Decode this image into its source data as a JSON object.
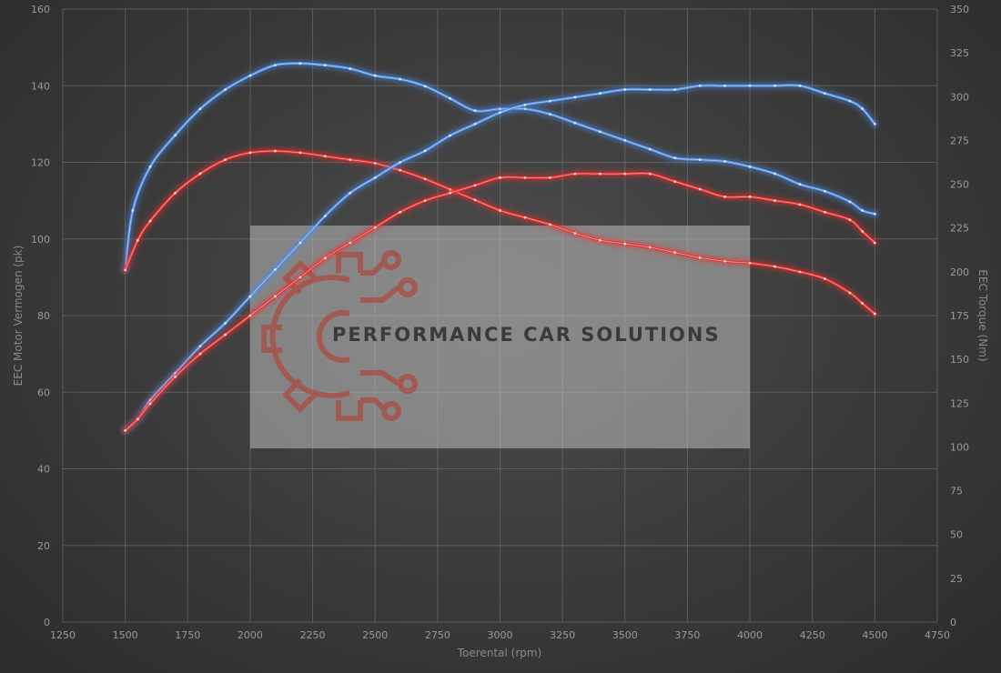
{
  "chart_data": {
    "type": "line",
    "xlabel": "Toerental (rpm)",
    "ylabel_left": "EEC Motor Vermogen (pk)",
    "ylabel_right": "EEC Torque (Nm)",
    "xlim": [
      1250,
      4750
    ],
    "ylim_left": [
      0,
      160
    ],
    "ylim_right": [
      0,
      350
    ],
    "x_ticks": [
      1250,
      1500,
      1750,
      2000,
      2250,
      2500,
      2750,
      3000,
      3250,
      3500,
      3750,
      4000,
      4250,
      4500,
      4750
    ],
    "y_ticks_left": [
      0,
      20,
      40,
      60,
      80,
      100,
      120,
      140,
      160
    ],
    "y_ticks_right": [
      0,
      25,
      50,
      75,
      100,
      125,
      150,
      175,
      200,
      225,
      250,
      275,
      300,
      325,
      350
    ],
    "grid": true,
    "colors": {
      "tuned": "#4f8fe6",
      "stock": "#e8302f"
    },
    "series": [
      {
        "key": "tuned_torque",
        "axis": "right",
        "color": "tuned",
        "x": [
          1500,
          1530,
          1600,
          1700,
          1800,
          1900,
          2000,
          2100,
          2200,
          2300,
          2400,
          2500,
          2600,
          2700,
          2800,
          2900,
          3000,
          3100,
          3200,
          3300,
          3400,
          3500,
          3600,
          3700,
          3800,
          3900,
          4000,
          4100,
          4200,
          4300,
          4400,
          4450,
          4500
        ],
        "values": [
          201,
          235,
          260,
          278,
          293,
          304,
          312,
          318,
          319,
          318,
          316,
          312,
          310,
          306,
          299,
          292,
          293,
          293,
          290,
          285,
          280,
          275,
          270,
          265,
          264,
          263,
          260,
          256,
          250,
          246,
          240,
          235,
          233
        ]
      },
      {
        "key": "stock_torque",
        "axis": "right",
        "color": "stock",
        "x": [
          1500,
          1550,
          1600,
          1700,
          1800,
          1900,
          2000,
          2100,
          2200,
          2300,
          2400,
          2500,
          2600,
          2700,
          2800,
          2900,
          3000,
          3100,
          3200,
          3300,
          3400,
          3500,
          3600,
          3700,
          3800,
          3900,
          4000,
          4100,
          4200,
          4300,
          4400,
          4450,
          4500
        ],
        "values": [
          201,
          218,
          229,
          245,
          256,
          264,
          268,
          269,
          268,
          266,
          264,
          262,
          258,
          253,
          247,
          241,
          235,
          231,
          227,
          222,
          218,
          216,
          214,
          211,
          208,
          206,
          205,
          203,
          200,
          196,
          188,
          182,
          176
        ]
      },
      {
        "key": "tuned_power",
        "axis": "left",
        "color": "tuned",
        "x": [
          1500,
          1550,
          1600,
          1700,
          1800,
          1900,
          2000,
          2100,
          2200,
          2300,
          2400,
          2500,
          2600,
          2700,
          2800,
          2900,
          3000,
          3100,
          3200,
          3300,
          3400,
          3500,
          3600,
          3700,
          3800,
          3900,
          4000,
          4100,
          4200,
          4300,
          4400,
          4450,
          4500
        ],
        "values": [
          50,
          53,
          58,
          65,
          72,
          78,
          85,
          92,
          99,
          106,
          112,
          116,
          120,
          123,
          127,
          130,
          133,
          135,
          136,
          137,
          138,
          139,
          139,
          139,
          140,
          140,
          140,
          140,
          140,
          138,
          136,
          134,
          130
        ]
      },
      {
        "key": "stock_power",
        "axis": "left",
        "color": "stock",
        "x": [
          1500,
          1550,
          1600,
          1700,
          1800,
          1900,
          2000,
          2100,
          2200,
          2300,
          2400,
          2500,
          2600,
          2700,
          2800,
          2900,
          3000,
          3100,
          3200,
          3300,
          3400,
          3500,
          3600,
          3700,
          3800,
          3900,
          4000,
          4100,
          4200,
          4300,
          4400,
          4450,
          4500
        ],
        "values": [
          50,
          53,
          57,
          64,
          70,
          75,
          80,
          85,
          90,
          95,
          99,
          103,
          107,
          110,
          112,
          114,
          116,
          116,
          116,
          117,
          117,
          117,
          117,
          115,
          113,
          111,
          111,
          110,
          109,
          107,
          105,
          102,
          99
        ]
      }
    ]
  },
  "watermark": {
    "text": "PERFORMANCE CAR SOLUTIONS",
    "logo": "gear-circuit-icon"
  }
}
